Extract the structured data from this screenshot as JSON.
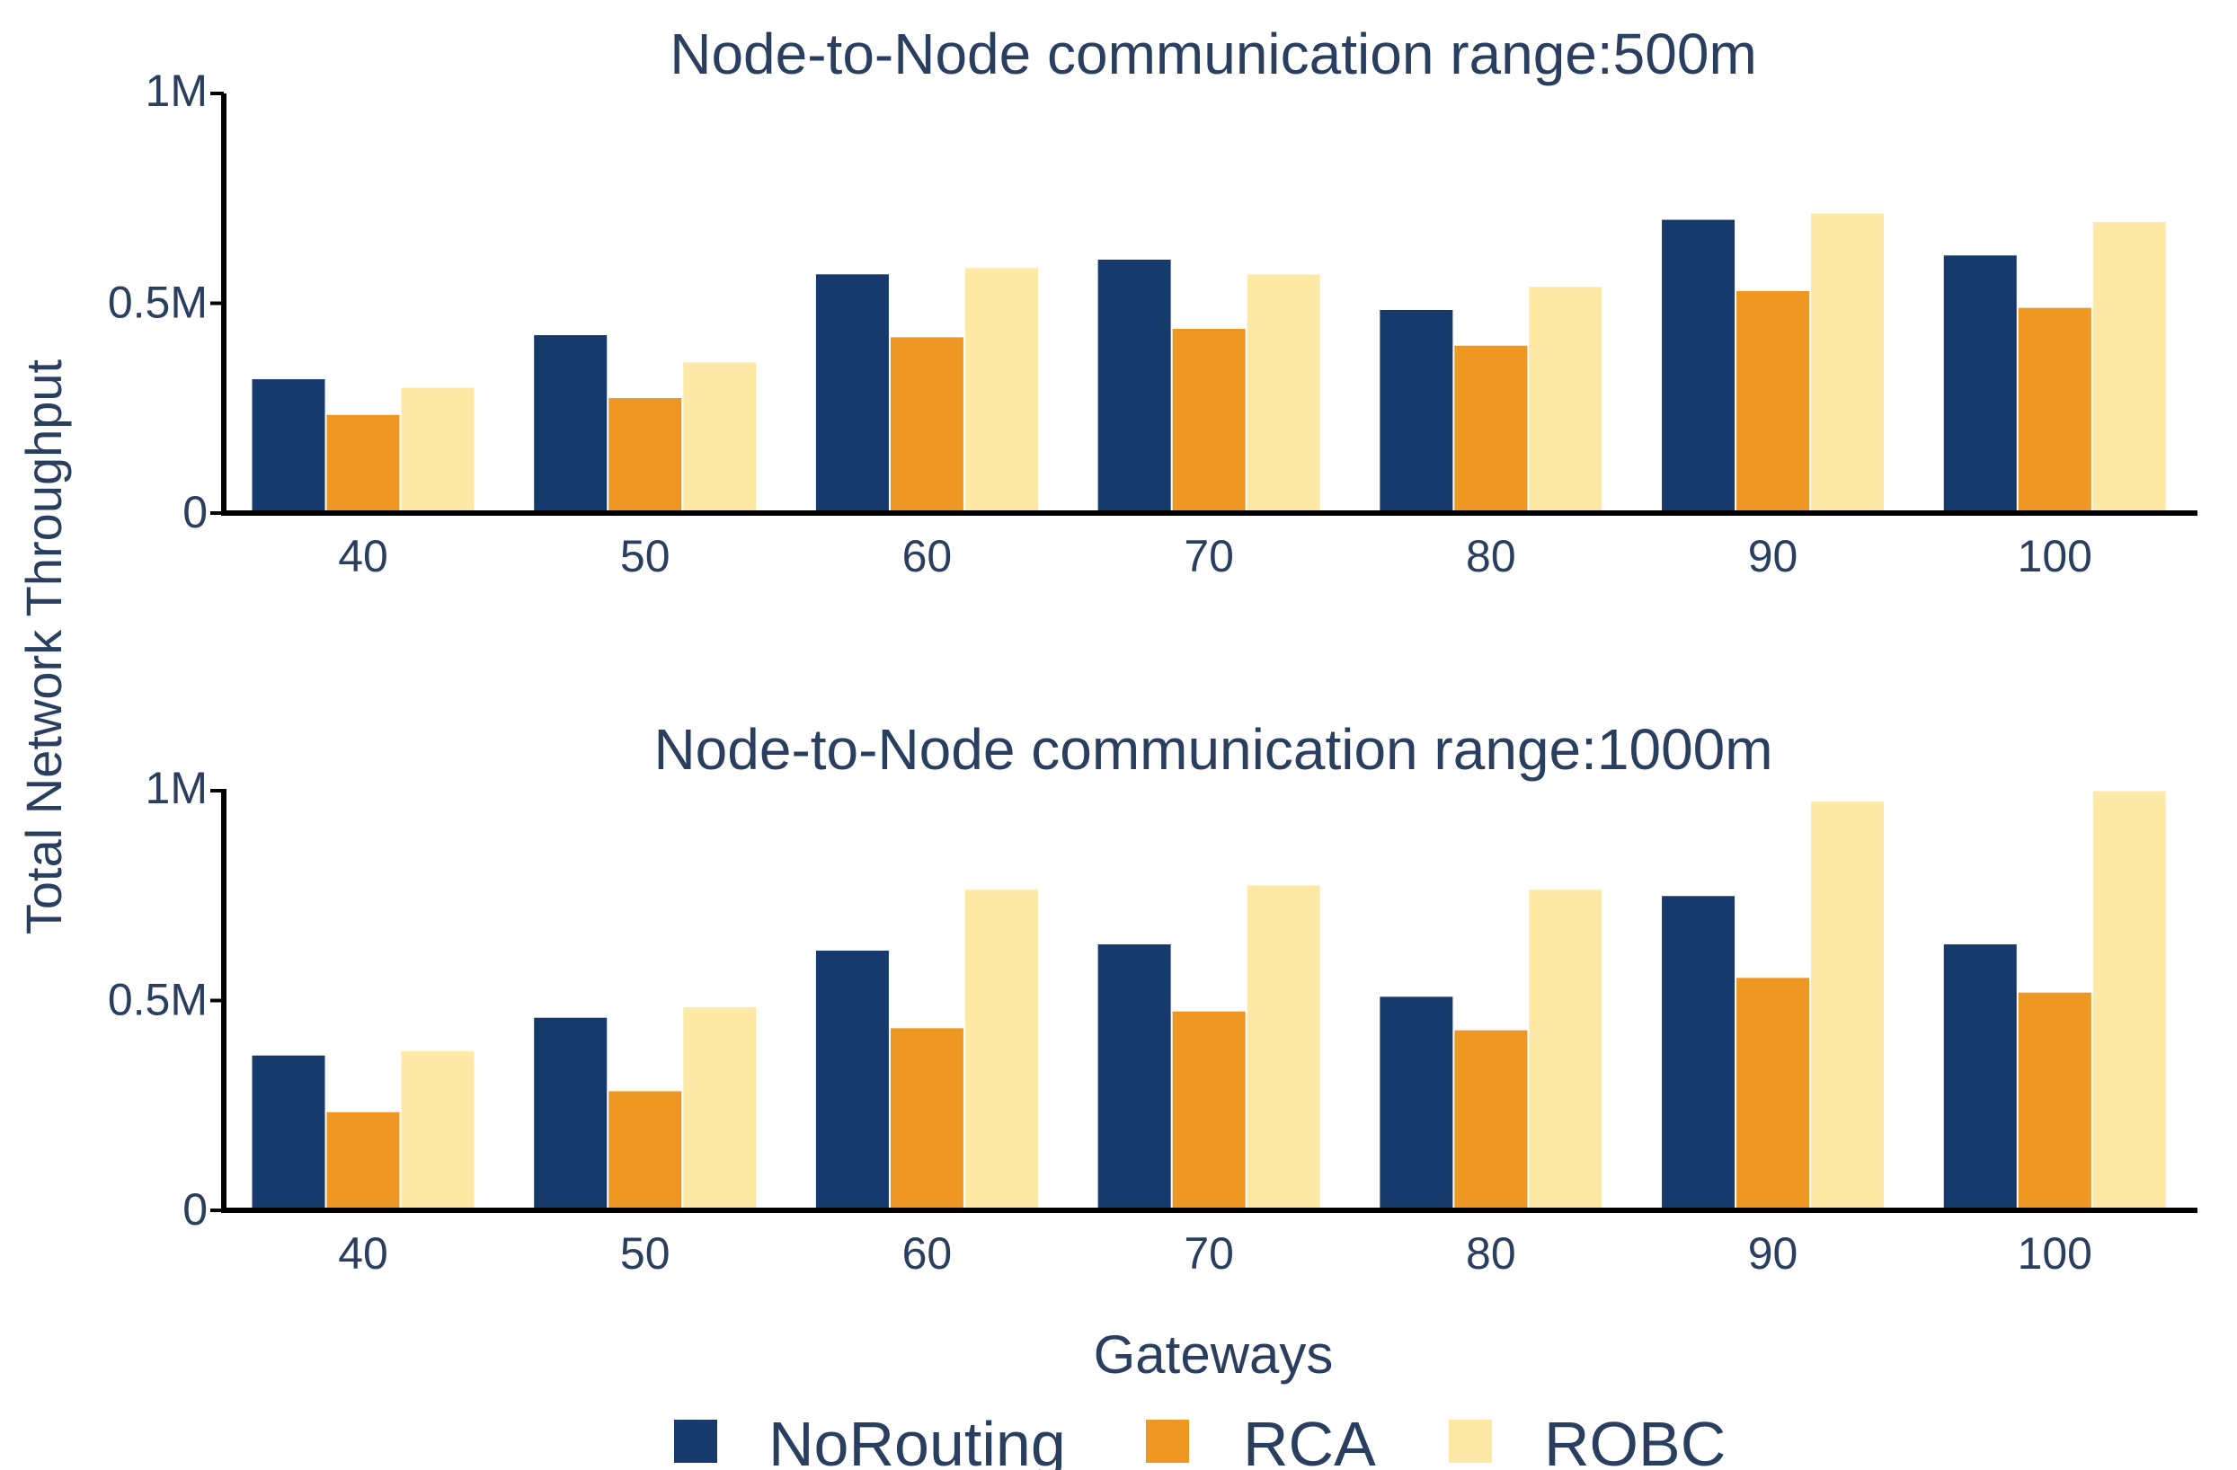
{
  "chart_data": {
    "type": "bar",
    "ylabel": "Total Network Throughput",
    "xlabel": "Gateways",
    "colors": {
      "NoRouting": "#163a6b",
      "RCA": "#ee9722",
      "ROBC": "#fde9a5"
    },
    "legend": {
      "position": "bottom",
      "entries": [
        "NoRouting",
        "RCA",
        "ROBC"
      ]
    },
    "panels": [
      {
        "title": "Node-to-Node communication range:500m",
        "categories": [
          "40",
          "50",
          "60",
          "70",
          "80",
          "90",
          "100"
        ],
        "ylim": [
          0,
          1000000
        ],
        "yticks": [
          {
            "value": 0,
            "label": "0"
          },
          {
            "value": 500000,
            "label": "0.5M"
          },
          {
            "value": 1000000,
            "label": "1M"
          }
        ],
        "series": [
          {
            "name": "NoRouting",
            "values": [
              320000,
              425000,
              570000,
              605000,
              485000,
              700000,
              615000
            ]
          },
          {
            "name": "RCA",
            "values": [
              235000,
              275000,
              420000,
              440000,
              400000,
              530000,
              490000
            ]
          },
          {
            "name": "ROBC",
            "values": [
              300000,
              360000,
              585000,
              570000,
              540000,
              715000,
              695000
            ]
          }
        ]
      },
      {
        "title": "Node-to-Node communication range:1000m",
        "categories": [
          "40",
          "50",
          "60",
          "70",
          "80",
          "90",
          "100"
        ],
        "ylim": [
          0,
          1000000
        ],
        "yticks": [
          {
            "value": 0,
            "label": "0"
          },
          {
            "value": 500000,
            "label": "0.5M"
          },
          {
            "value": 1000000,
            "label": "1M"
          }
        ],
        "series": [
          {
            "name": "NoRouting",
            "values": [
              370000,
              460000,
              620000,
              635000,
              510000,
              750000,
              635000
            ]
          },
          {
            "name": "RCA",
            "values": [
              235000,
              285000,
              435000,
              475000,
              430000,
              555000,
              520000
            ]
          },
          {
            "name": "ROBC",
            "values": [
              380000,
              485000,
              765000,
              775000,
              765000,
              975000,
              1000000
            ]
          }
        ]
      }
    ]
  }
}
